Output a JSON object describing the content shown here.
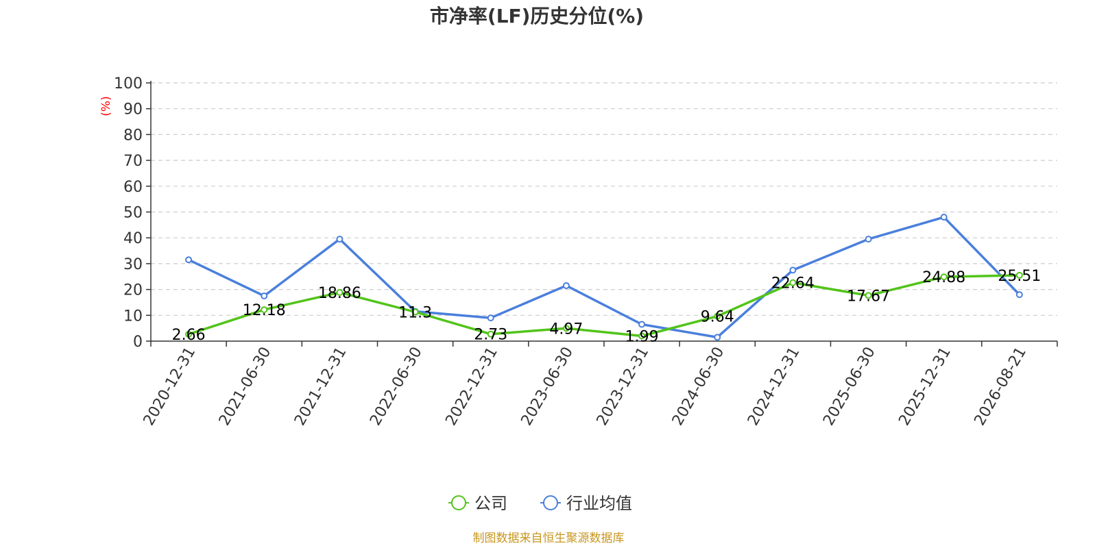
{
  "title": "市净率(LF)历史分位(%)",
  "source": "制图数据来自恒生聚源数据库",
  "colors": {
    "company": "#52c41a",
    "industry": "#4a7fdc",
    "unit": "#ff0000",
    "source": "#c8961e"
  },
  "chart_data": {
    "type": "line",
    "title": "市净率(LF)历史分位(%)",
    "ylabel": "(%)",
    "xlabel": "",
    "ylim": [
      0,
      100
    ],
    "yticks": [
      0,
      10,
      20,
      30,
      40,
      50,
      60,
      70,
      80,
      90,
      100
    ],
    "grid": "horizontal dashed",
    "legend": "bottom-center",
    "categories": [
      "2020-12-31",
      "2021-06-30",
      "2021-12-31",
      "2022-06-30",
      "2022-12-31",
      "2023-06-30",
      "2023-12-31",
      "2024-06-30",
      "2024-12-31",
      "2025-06-30",
      "2025-12-31",
      "2026-08-21"
    ],
    "series": [
      {
        "name": "公司",
        "color": "#52c41a",
        "labels": true,
        "values": [
          2.66,
          12.18,
          18.86,
          11.3,
          2.73,
          4.97,
          1.99,
          9.64,
          22.64,
          17.67,
          24.88,
          25.51
        ]
      },
      {
        "name": "行业均值",
        "color": "#4a7fdc",
        "labels": false,
        "values": [
          31.5,
          17.5,
          39.5,
          11.5,
          9,
          21.5,
          6.5,
          1.5,
          27.5,
          39.5,
          48,
          18
        ]
      }
    ]
  }
}
